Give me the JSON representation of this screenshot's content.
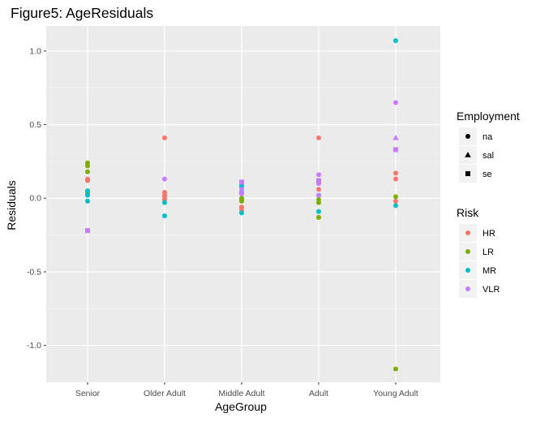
{
  "chart_data": {
    "type": "scatter",
    "title": "Figure5: AgeResiduals",
    "xlabel": "AgeGroup",
    "ylabel": "Residuals",
    "categories": [
      "Senior",
      "Older Adult",
      "Middle Adult",
      "Adult",
      "Young Adult"
    ],
    "yticks": [
      {
        "value": 1.0,
        "label": "1.0"
      },
      {
        "value": 0.5,
        "label": "0.5"
      },
      {
        "value": 0.0,
        "label": "0.0"
      },
      {
        "value": -0.5,
        "label": "-0.5"
      },
      {
        "value": -1.0,
        "label": "-1.0"
      }
    ],
    "ylim": [
      -1.25,
      1.17
    ],
    "grid": true,
    "legend_placement": "right",
    "legends": {
      "employment": {
        "title": "Employment",
        "entries": [
          {
            "label": "na",
            "shape": "circle"
          },
          {
            "label": "sal",
            "shape": "triangle"
          },
          {
            "label": "se",
            "shape": "square"
          }
        ]
      },
      "risk": {
        "title": "Risk",
        "entries": [
          {
            "label": "HR",
            "color": "#F8766D"
          },
          {
            "label": "LR",
            "color": "#7CAE00"
          },
          {
            "label": "MR",
            "color": "#00BFC4"
          },
          {
            "label": "VLR",
            "color": "#C77CFF"
          }
        ]
      }
    },
    "series": [
      {
        "name": "HR",
        "color": "#F8766D",
        "points": [
          {
            "x": "Senior",
            "y": 0.13,
            "shape": "circle"
          },
          {
            "x": "Senior",
            "y": 0.12,
            "shape": "circle"
          },
          {
            "x": "Senior",
            "y": 0.04,
            "shape": "circle"
          },
          {
            "x": "Older Adult",
            "y": 0.41,
            "shape": "circle"
          },
          {
            "x": "Older Adult",
            "y": 0.04,
            "shape": "circle"
          },
          {
            "x": "Older Adult",
            "y": 0.02,
            "shape": "circle"
          },
          {
            "x": "Older Adult",
            "y": 0.01,
            "shape": "circle"
          },
          {
            "x": "Older Adult",
            "y": -0.01,
            "shape": "circle"
          },
          {
            "x": "Middle Adult",
            "y": -0.06,
            "shape": "circle"
          },
          {
            "x": "Middle Adult",
            "y": -0.08,
            "shape": "circle"
          },
          {
            "x": "Adult",
            "y": 0.41,
            "shape": "circle"
          },
          {
            "x": "Adult",
            "y": 0.06,
            "shape": "circle"
          },
          {
            "x": "Adult",
            "y": -0.13,
            "shape": "circle"
          },
          {
            "x": "Young Adult",
            "y": 0.17,
            "shape": "circle"
          },
          {
            "x": "Young Adult",
            "y": 0.13,
            "shape": "circle"
          },
          {
            "x": "Young Adult",
            "y": -0.02,
            "shape": "circle"
          }
        ]
      },
      {
        "name": "LR",
        "color": "#7CAE00",
        "points": [
          {
            "x": "Senior",
            "y": 0.24,
            "shape": "circle"
          },
          {
            "x": "Senior",
            "y": 0.22,
            "shape": "circle"
          },
          {
            "x": "Senior",
            "y": 0.18,
            "shape": "circle"
          },
          {
            "x": "Senior",
            "y": 0.03,
            "shape": "circle"
          },
          {
            "x": "Middle Adult",
            "y": 0.0,
            "shape": "circle"
          },
          {
            "x": "Middle Adult",
            "y": -0.01,
            "shape": "circle"
          },
          {
            "x": "Middle Adult",
            "y": -0.02,
            "shape": "circle"
          },
          {
            "x": "Adult",
            "y": -0.01,
            "shape": "circle"
          },
          {
            "x": "Adult",
            "y": -0.03,
            "shape": "circle"
          },
          {
            "x": "Adult",
            "y": -0.13,
            "shape": "circle"
          },
          {
            "x": "Young Adult",
            "y": 0.01,
            "shape": "circle"
          },
          {
            "x": "Young Adult",
            "y": -1.16,
            "shape": "circle"
          }
        ]
      },
      {
        "name": "MR",
        "color": "#00BFC4",
        "points": [
          {
            "x": "Senior",
            "y": 0.05,
            "shape": "circle"
          },
          {
            "x": "Senior",
            "y": 0.02,
            "shape": "circle"
          },
          {
            "x": "Senior",
            "y": -0.02,
            "shape": "circle"
          },
          {
            "x": "Older Adult",
            "y": -0.03,
            "shape": "circle"
          },
          {
            "x": "Older Adult",
            "y": -0.12,
            "shape": "circle"
          },
          {
            "x": "Middle Adult",
            "y": 0.09,
            "shape": "circle"
          },
          {
            "x": "Middle Adult",
            "y": 0.08,
            "shape": "circle"
          },
          {
            "x": "Middle Adult",
            "y": 0.04,
            "shape": "circle"
          },
          {
            "x": "Middle Adult",
            "y": -0.1,
            "shape": "circle"
          },
          {
            "x": "Adult",
            "y": 0.02,
            "shape": "circle"
          },
          {
            "x": "Adult",
            "y": -0.09,
            "shape": "circle"
          },
          {
            "x": "Young Adult",
            "y": 1.07,
            "shape": "circle"
          },
          {
            "x": "Young Adult",
            "y": -0.05,
            "shape": "circle"
          }
        ]
      },
      {
        "name": "VLR",
        "color": "#C77CFF",
        "points": [
          {
            "x": "Senior",
            "y": -0.22,
            "shape": "square"
          },
          {
            "x": "Older Adult",
            "y": 0.13,
            "shape": "circle"
          },
          {
            "x": "Middle Adult",
            "y": 0.11,
            "shape": "square"
          },
          {
            "x": "Middle Adult",
            "y": 0.06,
            "shape": "circle"
          },
          {
            "x": "Middle Adult",
            "y": 0.03,
            "shape": "circle"
          },
          {
            "x": "Adult",
            "y": 0.16,
            "shape": "circle"
          },
          {
            "x": "Adult",
            "y": 0.12,
            "shape": "square"
          },
          {
            "x": "Adult",
            "y": 0.1,
            "shape": "circle"
          },
          {
            "x": "Adult",
            "y": 0.02,
            "shape": "circle"
          },
          {
            "x": "Young Adult",
            "y": 0.65,
            "shape": "circle"
          },
          {
            "x": "Young Adult",
            "y": 0.41,
            "shape": "triangle"
          },
          {
            "x": "Young Adult",
            "y": 0.33,
            "shape": "square"
          }
        ]
      }
    ],
    "colors": {
      "panel_background": "#EBEBEB",
      "grid_major": "#FFFFFF",
      "legend_key_background": "#F2F2F2",
      "axis_text": "#4D4D4D",
      "text": "#000000"
    }
  }
}
